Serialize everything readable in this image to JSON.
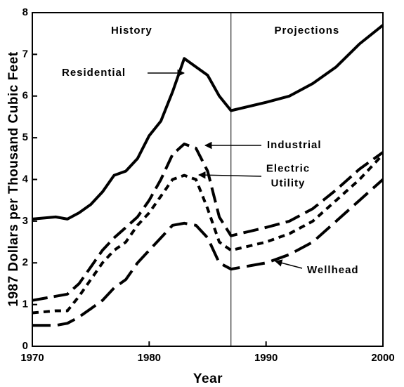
{
  "chart_data": {
    "type": "line",
    "x_label": "Year",
    "y_label": "1987 Dollars per Thousand Cubic Feet",
    "x": [
      1970,
      1972,
      1973,
      1974,
      1975,
      1976,
      1977,
      1978,
      1979,
      1980,
      1981,
      1982,
      1983,
      1984,
      1985,
      1986,
      1987,
      1990,
      1992,
      1994,
      1996,
      1998,
      2000
    ],
    "series": [
      {
        "name": "Residential",
        "color": "#000000",
        "values": [
          3.05,
          3.1,
          3.05,
          3.2,
          3.4,
          3.7,
          4.1,
          4.2,
          4.5,
          5.05,
          5.4,
          6.1,
          6.9,
          6.7,
          6.5,
          6.0,
          5.65,
          5.85,
          6.0,
          6.3,
          6.7,
          7.25,
          7.7
        ]
      },
      {
        "name": "Industrial",
        "color": "#000000",
        "values": [
          1.1,
          1.2,
          1.25,
          1.5,
          1.9,
          2.3,
          2.6,
          2.85,
          3.1,
          3.5,
          4.0,
          4.6,
          4.85,
          4.75,
          4.2,
          3.1,
          2.65,
          2.85,
          3.0,
          3.3,
          3.75,
          4.25,
          4.65
        ]
      },
      {
        "name": "Electric Utility",
        "color": "#000000",
        "values": [
          0.8,
          0.85,
          0.85,
          1.2,
          1.6,
          2.0,
          2.3,
          2.5,
          2.9,
          3.2,
          3.6,
          4.0,
          4.1,
          4.0,
          3.3,
          2.5,
          2.3,
          2.5,
          2.7,
          3.0,
          3.5,
          4.0,
          4.6
        ]
      },
      {
        "name": "Wellhead",
        "color": "#000000",
        "values": [
          0.5,
          0.5,
          0.55,
          0.7,
          0.9,
          1.1,
          1.4,
          1.6,
          2.0,
          2.3,
          2.6,
          2.9,
          2.95,
          2.9,
          2.6,
          2.0,
          1.85,
          2.0,
          2.2,
          2.5,
          3.0,
          3.5,
          4.0
        ]
      }
    ],
    "regions": [
      "History",
      "Projections"
    ],
    "divider_x": 1987,
    "xlim": [
      1970,
      2000
    ],
    "xticks": [
      1970,
      1980,
      1990,
      2000
    ],
    "ylim": [
      0,
      8
    ],
    "yticks": [
      0,
      1,
      2,
      3,
      4,
      5,
      6,
      7,
      8
    ],
    "grid": false
  }
}
